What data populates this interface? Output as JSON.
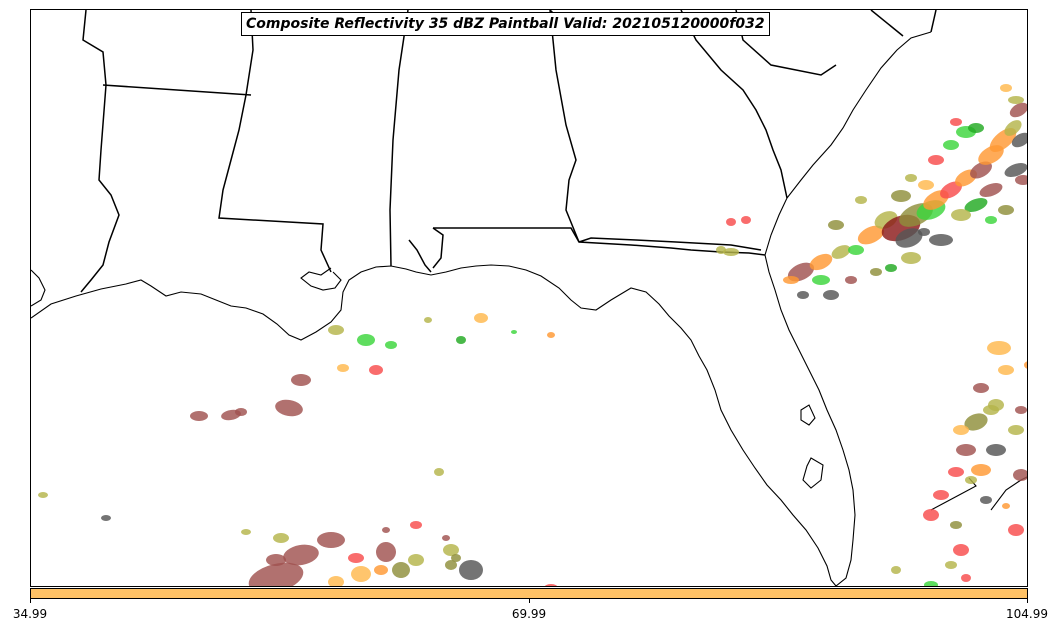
{
  "title": "Composite Reflectivity 35 dBZ Paintball Valid: 202105120000f032",
  "colorbar": {
    "fill_color": "#ffc266",
    "tick_labels": [
      "34.99",
      "69.99",
      "104.99"
    ]
  },
  "map": {
    "region": "US Gulf Coast and Florida",
    "features": [
      "state-borders",
      "coastlines"
    ],
    "ensemble_colors": [
      "#a0524f",
      "#f84c4c",
      "#ff9933",
      "#ffb84d",
      "#b5b54a",
      "#8f8f3a",
      "#3cd63c",
      "#22aa22",
      "#555555",
      "#8b1a1a"
    ]
  }
}
